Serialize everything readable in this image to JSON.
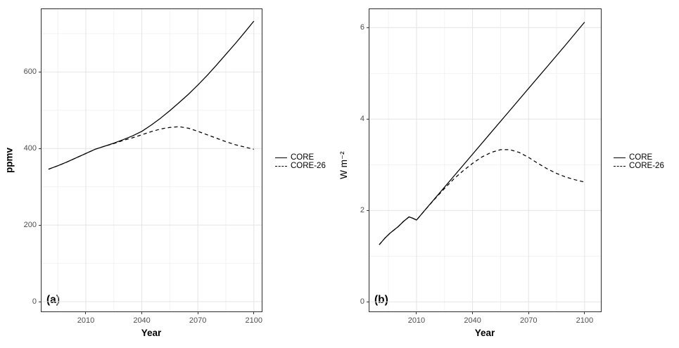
{
  "style_colors": {
    "background": "#ffffff",
    "grid_major": "#e4e4e4",
    "grid_minor": "#f2f2f2",
    "panel_border": "#333333",
    "tick_text": "#4d4d4d",
    "line": "#000000"
  },
  "chart_data": [
    {
      "id": "a",
      "type": "line",
      "panel_label": "(a)",
      "xlabel": "Year",
      "ylabel": "ppmv",
      "xlim": [
        1985.9,
        2104.6
      ],
      "ylim": [
        -27.5,
        766
      ],
      "x_ticks": [
        2010,
        2040,
        2070,
        2100
      ],
      "x_minor_gridlines": [
        1995,
        2025,
        2055,
        2085
      ],
      "y_ticks": [
        0,
        200,
        400,
        600
      ],
      "y_minor_gridlines": [
        100,
        300,
        500,
        700
      ],
      "grid": true,
      "legend_position": "right",
      "series": [
        {
          "name": "CORE",
          "linestyle": "solid",
          "color": "#000000",
          "x": [
            1990,
            1995,
            2000,
            2005,
            2010,
            2015,
            2020,
            2025,
            2030,
            2035,
            2040,
            2045,
            2050,
            2055,
            2060,
            2065,
            2070,
            2075,
            2080,
            2085,
            2090,
            2095,
            2100
          ],
          "y": [
            346,
            355,
            365,
            376,
            387,
            398,
            406,
            414,
            423,
            433,
            445,
            461,
            479,
            499,
            520,
            542,
            566,
            591,
            618,
            646,
            674,
            703,
            733
          ]
        },
        {
          "name": "CORE-26",
          "linestyle": "dashed",
          "color": "#000000",
          "x": [
            1990,
            1995,
            2000,
            2005,
            2010,
            2015,
            2020,
            2025,
            2030,
            2035,
            2040,
            2045,
            2050,
            2055,
            2060,
            2065,
            2070,
            2075,
            2080,
            2085,
            2090,
            2095,
            2100
          ],
          "y": [
            346,
            355,
            365,
            376,
            387,
            398,
            406,
            413,
            421,
            428,
            436,
            444,
            451,
            455,
            457,
            453,
            445,
            436,
            427,
            418,
            410,
            404,
            398
          ]
        }
      ]
    },
    {
      "id": "b",
      "type": "line",
      "panel_label": "(b)",
      "xlabel": "Year",
      "ylabel": "W m⁻²",
      "xlim": [
        1984.4,
        2109.1
      ],
      "ylim": [
        -0.225,
        6.42
      ],
      "x_ticks": [
        2010,
        2040,
        2070,
        2100
      ],
      "x_minor_gridlines": [
        1995,
        2025,
        2055,
        2085
      ],
      "y_ticks": [
        0,
        2,
        4,
        6
      ],
      "y_minor_gridlines": [
        1,
        3,
        5
      ],
      "grid": true,
      "legend_position": "right",
      "series": [
        {
          "name": "CORE",
          "linestyle": "solid",
          "color": "#000000",
          "x": [
            1990,
            1993,
            1996,
            2000,
            2003,
            2006,
            2008,
            2010,
            2015,
            2020,
            2030,
            2040,
            2050,
            2060,
            2070,
            2080,
            2090,
            2100
          ],
          "y": [
            1.25,
            1.39,
            1.51,
            1.64,
            1.76,
            1.86,
            1.83,
            1.79,
            2.03,
            2.27,
            2.75,
            3.23,
            3.71,
            4.19,
            4.67,
            5.15,
            5.63,
            6.12
          ]
        },
        {
          "name": "CORE-26",
          "linestyle": "dashed",
          "color": "#000000",
          "x": [
            1990,
            1993,
            1996,
            2000,
            2003,
            2006,
            2008,
            2010,
            2015,
            2020,
            2025,
            2030,
            2035,
            2040,
            2045,
            2050,
            2055,
            2060,
            2065,
            2070,
            2075,
            2080,
            2085,
            2090,
            2095,
            2100
          ],
          "y": [
            1.25,
            1.39,
            1.51,
            1.64,
            1.76,
            1.86,
            1.83,
            1.79,
            2.03,
            2.26,
            2.48,
            2.69,
            2.87,
            3.03,
            3.17,
            3.27,
            3.33,
            3.33,
            3.27,
            3.16,
            3.03,
            2.91,
            2.81,
            2.73,
            2.67,
            2.62
          ]
        }
      ]
    }
  ]
}
